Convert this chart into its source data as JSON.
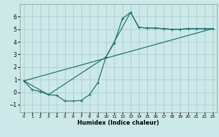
{
  "xlabel": "Humidex (Indice chaleur)",
  "background_color": "#cce8e8",
  "grid_color": "#aacccc",
  "line_color": "#1a7070",
  "xlim": [
    -0.5,
    23.5
  ],
  "ylim": [
    -1.6,
    7.0
  ],
  "yticks": [
    -1,
    0,
    1,
    2,
    3,
    4,
    5,
    6
  ],
  "xticks": [
    0,
    1,
    2,
    3,
    4,
    5,
    6,
    7,
    8,
    9,
    10,
    11,
    12,
    13,
    14,
    15,
    16,
    17,
    18,
    19,
    20,
    21,
    22,
    23
  ],
  "series1_x": [
    0,
    1,
    2,
    3,
    4,
    5,
    6,
    7,
    8,
    9,
    10,
    11,
    12,
    13,
    14,
    15,
    16,
    17,
    18,
    19,
    20,
    21,
    22,
    23
  ],
  "series1_y": [
    0.9,
    0.2,
    0.05,
    -0.2,
    -0.25,
    -0.7,
    -0.7,
    -0.65,
    -0.2,
    0.75,
    2.8,
    3.9,
    5.85,
    6.35,
    5.15,
    5.1,
    5.1,
    5.05,
    5.0,
    5.0,
    5.05,
    5.05,
    5.05,
    5.05
  ],
  "series2_x": [
    0,
    3,
    10,
    13,
    14,
    15,
    16,
    17,
    18,
    19,
    20,
    21,
    22,
    23
  ],
  "series2_y": [
    0.9,
    -0.2,
    2.8,
    6.35,
    5.15,
    5.1,
    5.1,
    5.05,
    5.0,
    5.0,
    5.05,
    5.05,
    5.05,
    5.05
  ],
  "series3_x": [
    0,
    23
  ],
  "series3_y": [
    0.9,
    5.05
  ]
}
